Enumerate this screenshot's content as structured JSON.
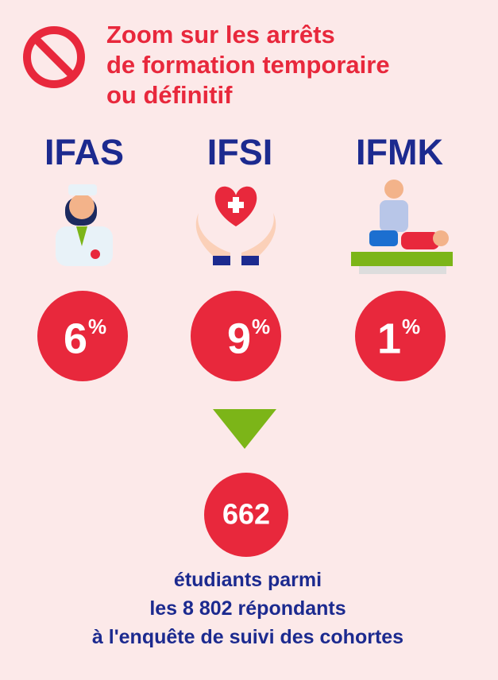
{
  "header": {
    "title_lines": [
      "Zoom sur les arrêts",
      "de formation temporaire",
      "ou définitif"
    ]
  },
  "programs": [
    {
      "name": "IFAS",
      "value": 6,
      "unit": "%"
    },
    {
      "name": "IFSI",
      "value": 9,
      "unit": "%"
    },
    {
      "name": "IFMK",
      "value": 1,
      "unit": "%"
    }
  ],
  "total": {
    "value": 662,
    "text_lines": [
      "étudiants parmi",
      "les 8 802 répondants",
      "à l'enquête de suivi des cohortes"
    ]
  }
}
